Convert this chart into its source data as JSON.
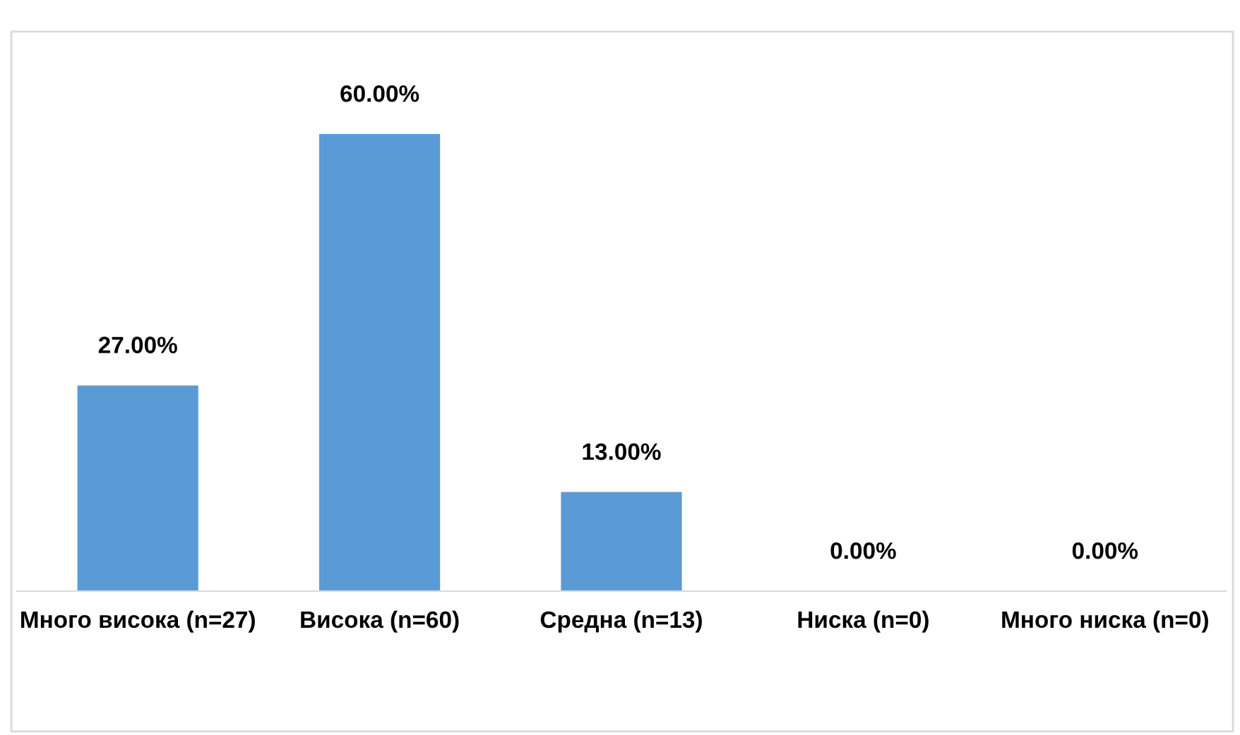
{
  "chart_data": {
    "type": "bar",
    "categories": [
      "Много висока (n=27)",
      "Висока (n=60)",
      "Средна (n=13)",
      "Ниска (n=0)",
      "Много ниска (n=0)"
    ],
    "values": [
      27,
      60,
      13,
      0,
      0
    ],
    "color": "#5b9bd5",
    "value_labels": [
      "27.00%",
      "60.00%",
      "13.00%",
      "0.00%",
      "0.00%"
    ],
    "grid": false,
    "legend": false
  }
}
